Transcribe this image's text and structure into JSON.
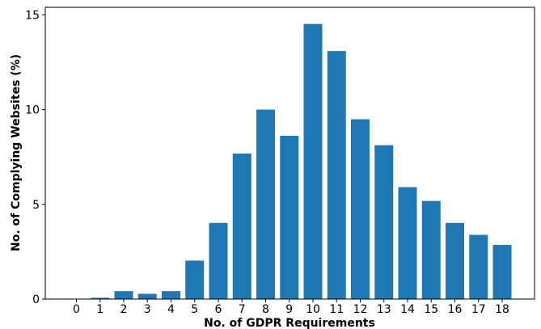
{
  "chart_data": {
    "type": "bar",
    "title": "",
    "xlabel": "No. of GDPR Requirements",
    "ylabel": "No. of Complying Websites (%)",
    "categories": [
      "0",
      "1",
      "2",
      "3",
      "4",
      "5",
      "6",
      "7",
      "8",
      "9",
      "10",
      "11",
      "12",
      "13",
      "14",
      "15",
      "16",
      "17",
      "18"
    ],
    "values": [
      0.0,
      0.07,
      0.42,
      0.28,
      0.42,
      2.03,
      4.02,
      7.68,
      10.0,
      8.62,
      14.52,
      13.09,
      9.49,
      8.12,
      5.91,
      5.18,
      4.02,
      3.39,
      2.86
    ],
    "ylim": [
      0,
      15.4
    ],
    "yticks": [
      0,
      5,
      10,
      15
    ],
    "grid": false,
    "bar_color": "#1f77b4"
  }
}
